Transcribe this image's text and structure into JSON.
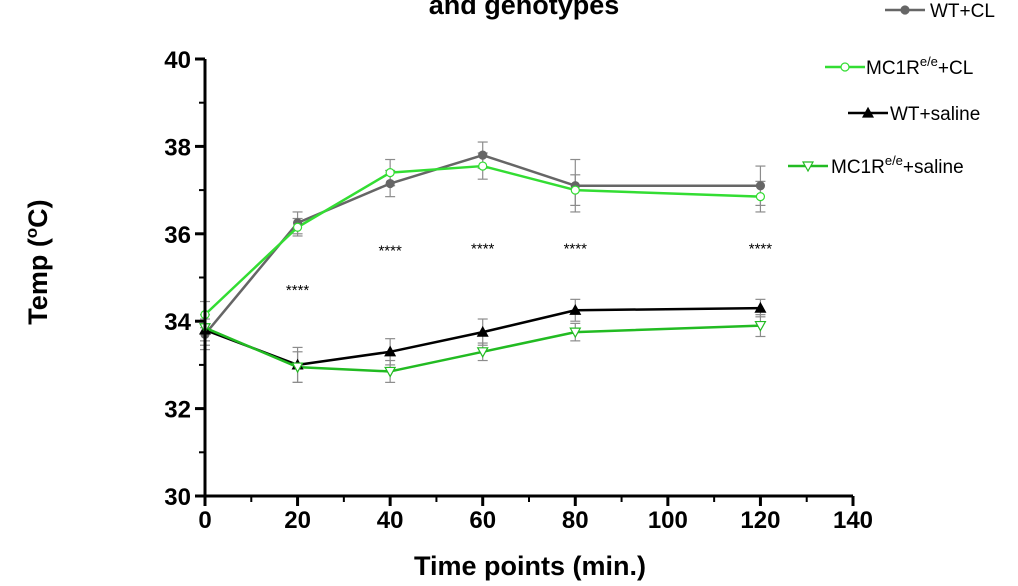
{
  "chart_data": {
    "type": "line",
    "title": "and genotypes",
    "xlabel": "Time points (min.)",
    "ylabel_main": "Temp (",
    "ylabel_sup": "o",
    "ylabel_end": "C)",
    "xlim": [
      0,
      140
    ],
    "ylim": [
      30,
      40
    ],
    "xticks": [
      0,
      20,
      40,
      60,
      80,
      100,
      120,
      140
    ],
    "yticks": [
      30,
      32,
      34,
      36,
      38,
      40
    ],
    "x": [
      0,
      20,
      40,
      60,
      80,
      120
    ],
    "series": [
      {
        "name": "WT+CL",
        "name_main": "WT+CL",
        "name_sup": "",
        "name_end": "",
        "color": "#666666",
        "marker": "filled-circle",
        "values": [
          33.7,
          36.25,
          37.15,
          37.8,
          37.1,
          37.1
        ],
        "errors": [
          0.35,
          0.25,
          0.3,
          0.3,
          0.6,
          0.45
        ]
      },
      {
        "name": "MC1Re/e+CL",
        "name_main": "MC1R",
        "name_sup": "e/e",
        "name_end": "+CL",
        "color": "#33dd33",
        "marker": "open-circle",
        "values": [
          34.15,
          36.15,
          37.4,
          37.55,
          37.0,
          36.85
        ],
        "errors": [
          0.3,
          0.2,
          0.3,
          0.3,
          0.35,
          0.35
        ]
      },
      {
        "name": "WT+saline",
        "name_main": "WT+saline",
        "name_sup": "",
        "name_end": "",
        "color": "#000000",
        "marker": "filled-triangle",
        "values": [
          33.8,
          33.0,
          33.3,
          33.75,
          34.25,
          34.3
        ],
        "errors": [
          0.35,
          0.4,
          0.3,
          0.3,
          0.25,
          0.2
        ]
      },
      {
        "name": "MC1Re/e+saline",
        "name_main": "MC1R",
        "name_sup": "e/e",
        "name_end": "+saline",
        "color": "#22bb22",
        "marker": "open-triangle",
        "values": [
          33.85,
          32.95,
          32.85,
          33.3,
          33.75,
          33.9
        ],
        "errors": [
          0.3,
          0.35,
          0.25,
          0.2,
          0.2,
          0.25
        ]
      }
    ],
    "annotations": [
      {
        "x": 20,
        "y": 34.6,
        "text": "****"
      },
      {
        "x": 40,
        "y": 35.5,
        "text": "****"
      },
      {
        "x": 60,
        "y": 35.55,
        "text": "****"
      },
      {
        "x": 80,
        "y": 35.55,
        "text": "****"
      },
      {
        "x": 120,
        "y": 35.55,
        "text": "****"
      }
    ],
    "legend_position": "top-right",
    "grid": false
  }
}
